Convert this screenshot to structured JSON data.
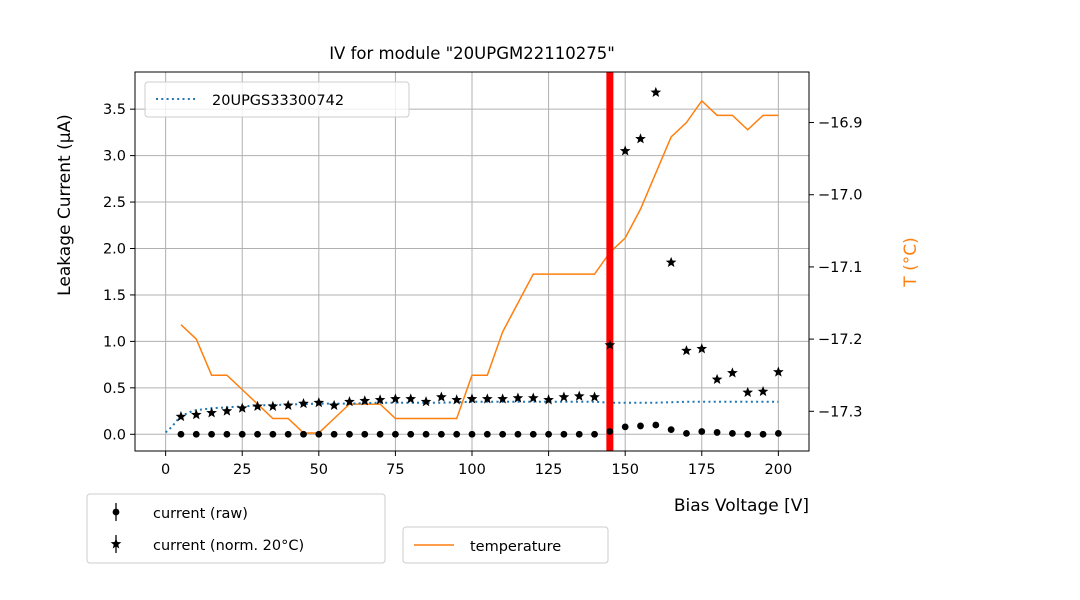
{
  "chart_data": {
    "type": "scatter",
    "title": "IV for module \"20UPGM22110275\"",
    "xlabel": "Bias Voltage [V]",
    "ylabel": "Leakage Current (µA)",
    "y2label": "T (°C)",
    "xlim": [
      -10,
      210
    ],
    "ylim": [
      -0.18,
      3.9
    ],
    "y2lim": [
      -17.355,
      -16.83
    ],
    "xticks": [
      0,
      25,
      50,
      75,
      100,
      125,
      150,
      175,
      200
    ],
    "yticks": [
      0.0,
      0.5,
      1.0,
      1.5,
      2.0,
      2.5,
      3.0,
      3.5
    ],
    "y2ticks": [
      -17.3,
      -17.2,
      -17.1,
      -17.0,
      -16.9
    ],
    "xtick_labels": [
      "0",
      "25",
      "50",
      "75",
      "100",
      "125",
      "150",
      "175",
      "200"
    ],
    "ytick_labels": [
      "0.0",
      "0.5",
      "1.0",
      "1.5",
      "2.0",
      "2.5",
      "3.0",
      "3.5"
    ],
    "y2tick_labels": [
      "−17.3",
      "−17.2",
      "−17.1",
      "−17.0",
      "−16.9"
    ],
    "grid": true,
    "vline": {
      "x": 145,
      "color": "#ff0000"
    },
    "colors": {
      "raw": "#000000",
      "norm": "#000000",
      "reference": "#1f77b4",
      "temperature": "#ff7f0e",
      "axis": "#000000",
      "grid": "#b0b0b0"
    },
    "legends": {
      "reference": {
        "label": "20UPGS33300742",
        "placement": "top-left"
      },
      "current": {
        "labels": [
          "current (raw)",
          "current (norm. 20°C)"
        ],
        "placement": "bottom-left outside"
      },
      "temperature": {
        "label": "temperature",
        "placement": "bottom-center outside"
      }
    },
    "series": [
      {
        "name": "current (raw)",
        "marker": "circle",
        "x": [
          5,
          10,
          15,
          20,
          25,
          30,
          35,
          40,
          45,
          50,
          55,
          60,
          65,
          70,
          75,
          80,
          85,
          90,
          95,
          100,
          105,
          110,
          115,
          120,
          125,
          130,
          135,
          140,
          145,
          150,
          155,
          160,
          165,
          170,
          175,
          180,
          185,
          190,
          195,
          200
        ],
        "y": [
          0.0,
          0.0,
          0.0,
          0.0,
          0.0,
          0.0,
          0.0,
          0.0,
          0.0,
          0.0,
          0.0,
          0.0,
          0.0,
          0.0,
          0.0,
          0.0,
          0.0,
          0.0,
          0.0,
          0.0,
          0.0,
          0.0,
          0.0,
          0.0,
          0.0,
          0.0,
          0.0,
          0.0,
          0.03,
          0.08,
          0.09,
          0.1,
          0.05,
          0.01,
          0.03,
          0.02,
          0.01,
          0.0,
          0.0,
          0.01
        ]
      },
      {
        "name": "current (norm. 20°C)",
        "marker": "star",
        "x": [
          5,
          10,
          15,
          20,
          25,
          30,
          35,
          40,
          45,
          50,
          55,
          60,
          65,
          70,
          75,
          80,
          85,
          90,
          95,
          100,
          105,
          110,
          115,
          120,
          125,
          130,
          135,
          140,
          145,
          150,
          155,
          160,
          165,
          170,
          175,
          180,
          185,
          190,
          195,
          200
        ],
        "y": [
          0.19,
          0.21,
          0.23,
          0.25,
          0.28,
          0.3,
          0.3,
          0.31,
          0.33,
          0.34,
          0.31,
          0.35,
          0.36,
          0.37,
          0.38,
          0.38,
          0.35,
          0.4,
          0.37,
          0.38,
          0.38,
          0.38,
          0.39,
          0.39,
          0.37,
          0.4,
          0.41,
          0.4,
          0.96,
          3.05,
          3.18,
          3.68,
          1.85,
          0.9,
          0.92,
          0.59,
          0.66,
          0.45,
          0.46,
          0.67
        ]
      },
      {
        "name": "20UPGS33300742",
        "style": "dotted",
        "x": [
          0,
          2,
          4,
          6,
          8,
          10,
          15,
          20,
          25,
          30,
          40,
          50,
          60,
          70,
          80,
          90,
          100,
          110,
          120,
          130,
          140,
          145,
          150,
          160,
          170,
          180,
          190,
          200
        ],
        "y": [
          0.02,
          0.08,
          0.16,
          0.21,
          0.24,
          0.26,
          0.28,
          0.29,
          0.3,
          0.31,
          0.32,
          0.33,
          0.33,
          0.34,
          0.34,
          0.34,
          0.35,
          0.35,
          0.35,
          0.35,
          0.35,
          0.34,
          0.34,
          0.34,
          0.35,
          0.35,
          0.35,
          0.35
        ]
      },
      {
        "name": "temperature",
        "axis": "right",
        "style": "solid",
        "x": [
          5,
          10,
          15,
          20,
          25,
          30,
          35,
          40,
          45,
          50,
          55,
          60,
          65,
          70,
          75,
          80,
          85,
          90,
          95,
          100,
          105,
          110,
          115,
          120,
          125,
          130,
          135,
          140,
          145,
          150,
          155,
          160,
          165,
          170,
          175,
          180,
          185,
          190,
          195,
          200
        ],
        "y": [
          -17.18,
          -17.2,
          -17.25,
          -17.25,
          -17.27,
          -17.29,
          -17.31,
          -17.31,
          -17.33,
          -17.33,
          -17.31,
          -17.29,
          -17.29,
          -17.29,
          -17.31,
          -17.31,
          -17.31,
          -17.31,
          -17.31,
          -17.25,
          -17.25,
          -17.19,
          -17.15,
          -17.11,
          -17.11,
          -17.11,
          -17.11,
          -17.11,
          -17.08,
          -17.06,
          -17.02,
          -16.97,
          -16.92,
          -16.9,
          -16.87,
          -16.89,
          -16.89,
          -16.91,
          -16.89,
          -16.89
        ]
      }
    ]
  }
}
